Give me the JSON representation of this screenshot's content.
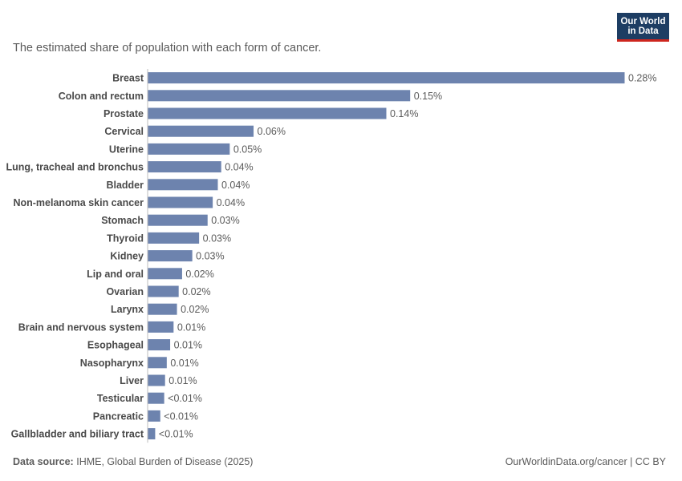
{
  "header": {
    "subtitle": "The estimated share of population with each form of cancer.",
    "logo_line1": "Our World",
    "logo_line2": "in Data"
  },
  "footer": {
    "source_label": "Data source:",
    "source_text": "IHME, Global Burden of Disease (2025)",
    "right_text": "OurWorldinData.org/cancer | CC BY"
  },
  "colors": {
    "bar": "#6d83ae",
    "axis": "#bdbdbd",
    "label": "#4a4a4a",
    "value": "#5b5b5b",
    "logo_bg": "#1d3d63",
    "logo_accent": "#ce261e"
  },
  "chart_data": {
    "type": "bar",
    "orientation": "horizontal",
    "unit": "%",
    "categories": [
      "Breast",
      "Colon and rectum",
      "Prostate",
      "Cervical",
      "Uterine",
      "Lung, tracheal and bronchus",
      "Bladder",
      "Non-melanoma skin cancer",
      "Stomach",
      "Thyroid",
      "Kidney",
      "Lip and oral",
      "Ovarian",
      "Larynx",
      "Brain and nervous system",
      "Esophageal",
      "Nasopharynx",
      "Liver",
      "Testicular",
      "Pancreatic",
      "Gallbladder and biliary tract"
    ],
    "values": [
      0.28,
      0.154,
      0.14,
      0.062,
      0.048,
      0.043,
      0.041,
      0.038,
      0.035,
      0.03,
      0.026,
      0.02,
      0.018,
      0.017,
      0.015,
      0.013,
      0.011,
      0.01,
      0.0095,
      0.0072,
      0.0042
    ],
    "labels": [
      "0.28%",
      "0.15%",
      "0.14%",
      "0.06%",
      "0.05%",
      "0.04%",
      "0.04%",
      "0.04%",
      "0.03%",
      "0.03%",
      "0.03%",
      "0.02%",
      "0.02%",
      "0.02%",
      "0.01%",
      "0.01%",
      "0.01%",
      "0.01%",
      "<0.01%",
      "<0.01%",
      "<0.01%"
    ],
    "xlim": [
      0,
      0.28
    ],
    "grid": false,
    "legend": "none"
  }
}
